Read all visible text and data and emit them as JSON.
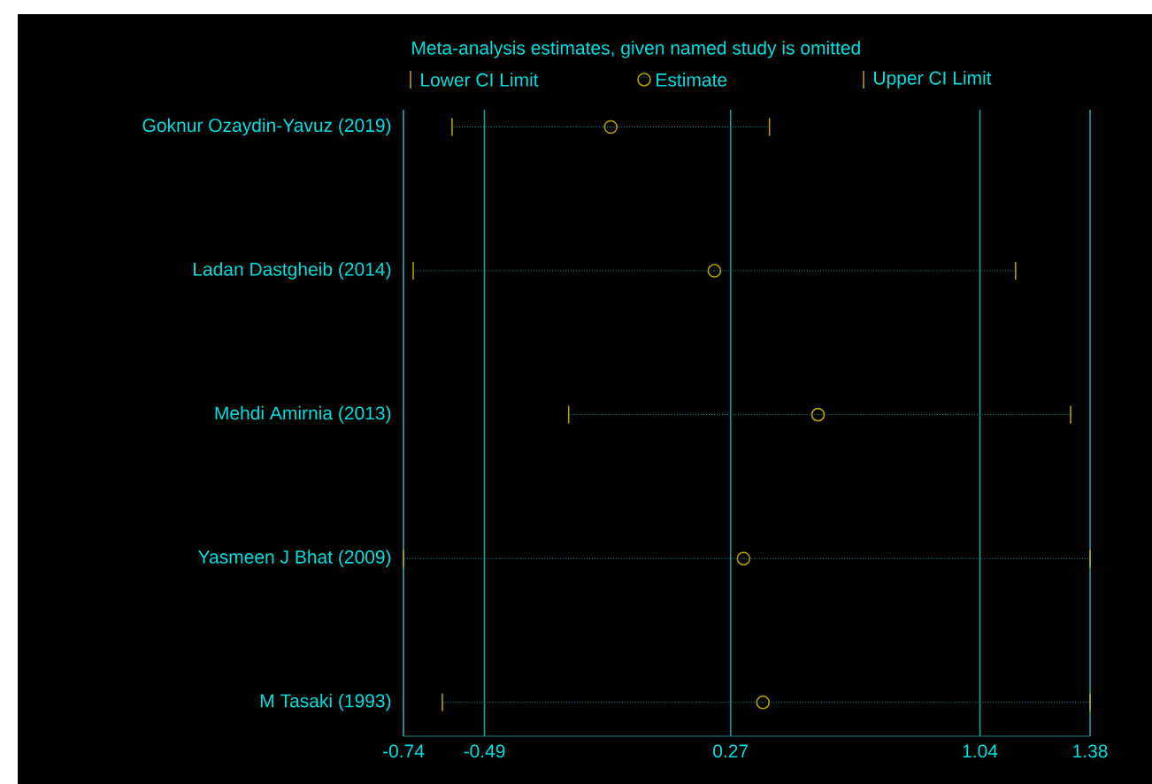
{
  "chart_data": {
    "type": "scatter",
    "orientation": "horizontal",
    "legend_title": "Meta-analysis estimates, given named study is omitted",
    "categories": [
      "Goknur Ozaydin-Yavuz (2019)",
      "Ladan Dastgheib (2014)",
      "Mehdi Amirnia (2013)",
      "Yasmeen J Bhat (2009)",
      "M Tasaki (1993)"
    ],
    "series": [
      {
        "name": "Estimate",
        "color": "#b4a000",
        "values": [
          -0.1,
          0.22,
          0.54,
          0.31,
          0.37
        ],
        "errors": [
          [
            -0.59,
            0.39
          ],
          [
            -0.71,
            1.15
          ],
          [
            -0.23,
            1.32
          ],
          [
            -0.74,
            1.38
          ],
          [
            -0.62,
            1.38
          ]
        ]
      }
    ],
    "annotations": [
      "Lower CI Limit",
      "Upper CI Limit"
    ],
    "xlim": [
      -0.74,
      1.38
    ],
    "xticks": [
      -0.74,
      -0.49,
      0.27,
      1.04,
      1.38
    ],
    "grid": "x",
    "legend": "top",
    "marker": "circle",
    "line_style": "dotted"
  }
}
